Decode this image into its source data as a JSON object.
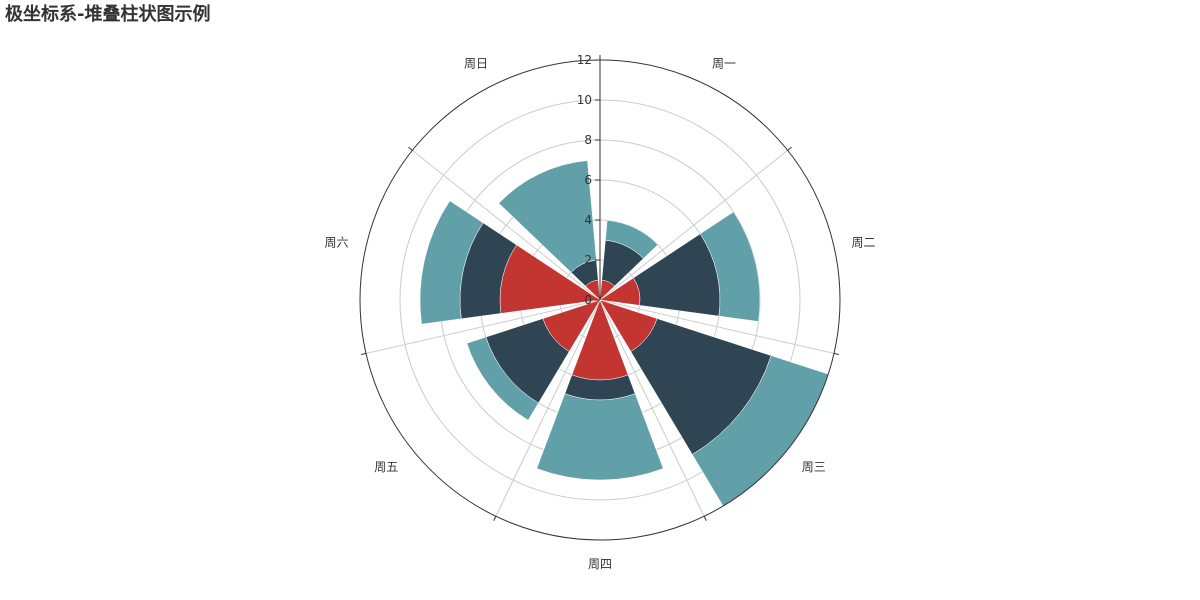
{
  "chart_data": {
    "type": "bar",
    "coordinate_system": "polar",
    "stacked": true,
    "title": "极坐标系-堆叠柱状图示例",
    "categories": [
      "周一",
      "周二",
      "周三",
      "周四",
      "周五",
      "周六",
      "周日"
    ],
    "radius_axis": {
      "min": 0,
      "max": 12,
      "ticks": [
        0,
        2,
        4,
        6,
        8,
        10,
        12
      ]
    },
    "grid": true,
    "legend": "none",
    "series": [
      {
        "color": "#c23531",
        "values": [
          1,
          2,
          3,
          4,
          3,
          5,
          1
        ]
      },
      {
        "color": "#2f4554",
        "values": [
          2,
          4,
          6,
          1,
          3,
          2,
          1
        ]
      },
      {
        "color": "#61a0a8",
        "values": [
          1,
          2,
          3,
          4,
          1,
          2,
          5
        ]
      }
    ]
  }
}
